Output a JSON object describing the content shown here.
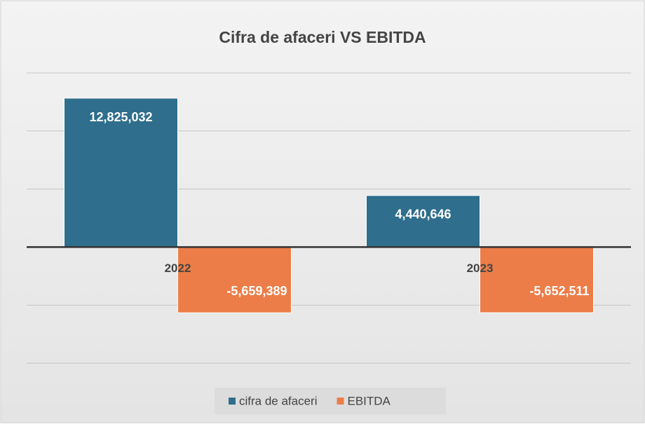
{
  "chart_data": {
    "type": "bar",
    "title": "Cifra de afaceri VS EBITDA",
    "categories": [
      "2022",
      "2023"
    ],
    "series": [
      {
        "name": "cifra de afaceri",
        "color": "#2f6e8d",
        "values": [
          12825032,
          4440646
        ],
        "value_labels": [
          "12,825,032",
          "4,440,646"
        ]
      },
      {
        "name": "EBITDA",
        "color": "#ec7d48",
        "values": [
          -5659389,
          -5652511
        ],
        "value_labels": [
          "-5,659,389",
          "-5,652,511"
        ]
      }
    ],
    "ylim": [
      -10000000,
      15000000
    ],
    "yticks": [
      -10000000,
      -5000000,
      0,
      5000000,
      10000000,
      15000000
    ],
    "grid": true,
    "legend": "bottom"
  }
}
